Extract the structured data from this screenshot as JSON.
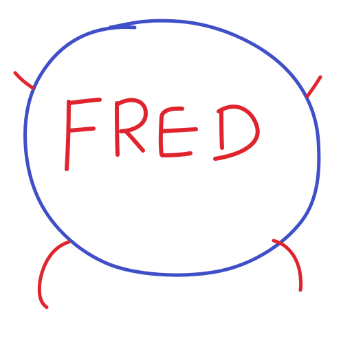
{
  "drawing": {
    "name_label": "FRED",
    "colors": {
      "body": "#3f4fc8",
      "ink": "#e0242e",
      "background": "#ffffff"
    }
  }
}
